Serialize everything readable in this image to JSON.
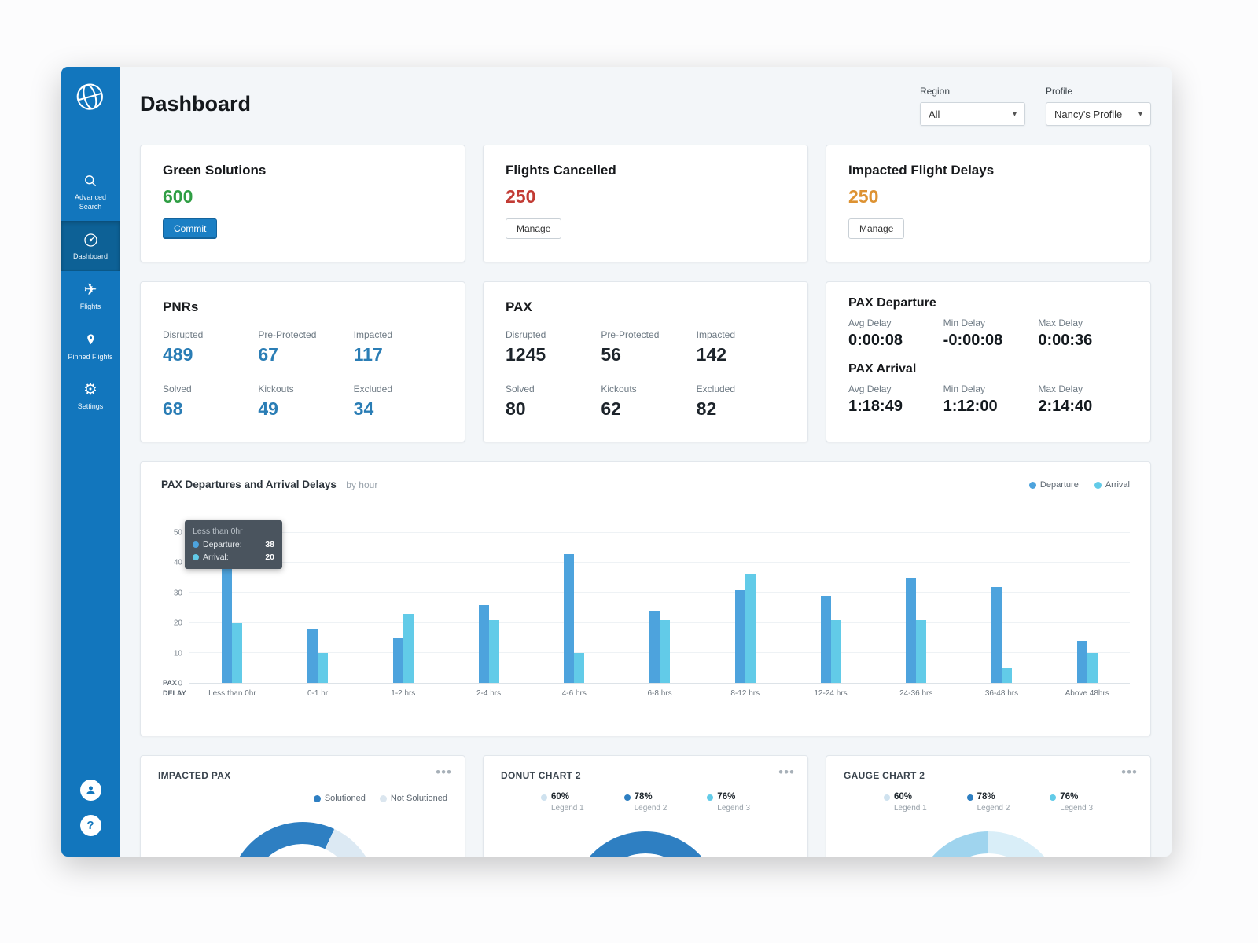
{
  "icons": {
    "logo": "globe-icon",
    "advanced_search": "search-icon",
    "dashboard": "gauge-icon",
    "flights": "plane-icon",
    "pinned_flights": "pin-icon",
    "settings": "gear-icon",
    "user": "user-icon",
    "help": "help-icon",
    "card_menu": "ellipsis-icon",
    "dropdown": "caret-down-icon"
  },
  "sidebar": {
    "items": [
      {
        "label": "Advanced Search"
      },
      {
        "label": "Dashboard"
      },
      {
        "label": "Flights"
      },
      {
        "label": "Pinned Flights"
      },
      {
        "label": "Settings"
      }
    ]
  },
  "header": {
    "title": "Dashboard",
    "region": {
      "label": "Region",
      "value": "All"
    },
    "profile": {
      "label": "Profile",
      "value": "Nancy's Profile"
    }
  },
  "summary_cards": [
    {
      "title": "Green Solutions",
      "value": "600",
      "value_color": "#2f9e44",
      "button_label": "Commit"
    },
    {
      "title": "Flights Cancelled",
      "value": "250",
      "value_color": "#c23b34",
      "button_label": "Manage"
    },
    {
      "title": "Impacted Flight Delays",
      "value": "250",
      "value_color": "#dd9232",
      "button_label": "Manage"
    }
  ],
  "pnrs": {
    "title": "PNRs",
    "value_color": "#2a7db5",
    "stats": [
      {
        "label": "Disrupted",
        "value": "489"
      },
      {
        "label": "Pre-Protected",
        "value": "67"
      },
      {
        "label": "Impacted",
        "value": "117"
      },
      {
        "label": "Solved",
        "value": "68"
      },
      {
        "label": "Kickouts",
        "value": "49"
      },
      {
        "label": "Excluded",
        "value": "34"
      }
    ]
  },
  "pax": {
    "title": "PAX",
    "value_color": "#1d242b",
    "stats": [
      {
        "label": "Disrupted",
        "value": "1245"
      },
      {
        "label": "Pre-Protected",
        "value": "56"
      },
      {
        "label": "Impacted",
        "value": "142"
      },
      {
        "label": "Solved",
        "value": "80"
      },
      {
        "label": "Kickouts",
        "value": "62"
      },
      {
        "label": "Excluded",
        "value": "82"
      }
    ]
  },
  "pax_delay": {
    "departure_title": "PAX Departure",
    "departure": [
      {
        "label": "Avg Delay",
        "value": "0:00:08"
      },
      {
        "label": "Min Delay",
        "value": "-0:00:08"
      },
      {
        "label": "Max Delay",
        "value": "0:00:36"
      }
    ],
    "arrival_title": "PAX Arrival",
    "arrival": [
      {
        "label": "Avg Delay",
        "value": "1:18:49"
      },
      {
        "label": "Min Delay",
        "value": "1:12:00"
      },
      {
        "label": "Max Delay",
        "value": "2:14:40"
      }
    ]
  },
  "chart_data": [
    {
      "type": "bar",
      "title": "PAX Departures and Arrival Delays",
      "subtitle": "by hour",
      "y_axis_label": "PAX",
      "x_axis_label": "DELAY",
      "ylim": [
        0,
        50
      ],
      "yticks": [
        0,
        10,
        20,
        30,
        40,
        50
      ],
      "grid": true,
      "legend_position": "top-right",
      "categories": [
        "Less than 0hr",
        "0-1 hr",
        "1-2 hrs",
        "2-4 hrs",
        "4-6 hrs",
        "6-8 hrs",
        "8-12 hrs",
        "12-24 hrs",
        "24-36 hrs",
        "36-48 hrs",
        "Above 48hrs"
      ],
      "series": [
        {
          "name": "Departure",
          "color": "#4da3dd",
          "values": [
            38,
            18,
            15,
            26,
            43,
            24,
            31,
            29,
            35,
            32,
            14
          ]
        },
        {
          "name": "Arrival",
          "color": "#62cbe8",
          "values": [
            20,
            10,
            23,
            21,
            10,
            21,
            36,
            21,
            21,
            5,
            10
          ]
        }
      ],
      "tooltip": {
        "title": "Less than 0hr",
        "rows": [
          {
            "name": "Departure:",
            "value": "38"
          },
          {
            "name": "Arrival:",
            "value": "20"
          }
        ]
      }
    },
    {
      "type": "donut",
      "title": "IMPACTED PAX",
      "legend": [
        {
          "label": "Solutioned",
          "color": "#2e7fc2"
        },
        {
          "label": "Not Solutioned",
          "color": "#dbe6ef"
        }
      ]
    },
    {
      "type": "donut",
      "title": "DONUT CHART 2",
      "legend": [
        {
          "value": "60%",
          "label": "Legend 1",
          "color": "#cfe2ef"
        },
        {
          "value": "78%",
          "label": "Legend 2",
          "color": "#2e7fc2"
        },
        {
          "value": "76%",
          "label": "Legend 3",
          "color": "#62cbe8"
        }
      ]
    },
    {
      "type": "gauge",
      "title": "GAUGE CHART 2",
      "legend": [
        {
          "value": "60%",
          "label": "Legend 1",
          "color": "#cfe2ef"
        },
        {
          "value": "78%",
          "label": "Legend 2",
          "color": "#2e7fc2"
        },
        {
          "value": "76%",
          "label": "Legend 3",
          "color": "#62cbe8"
        }
      ]
    }
  ]
}
